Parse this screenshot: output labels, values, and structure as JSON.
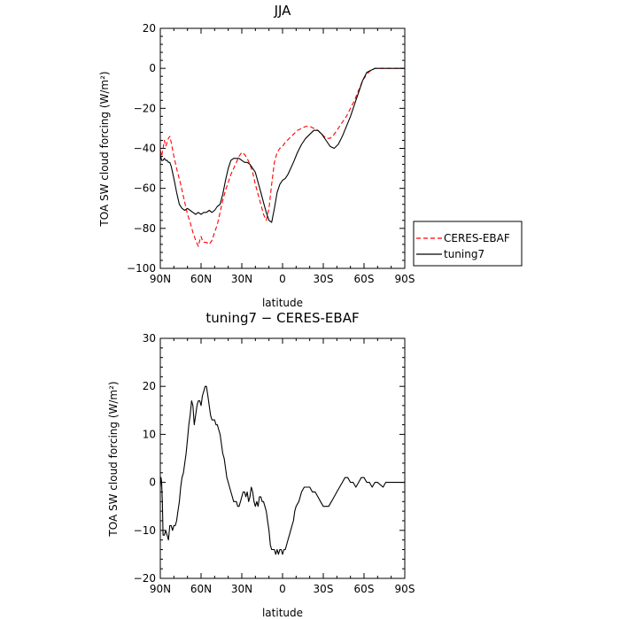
{
  "chart_data": [
    {
      "type": "line",
      "title": "JJA",
      "xlabel": "latitude",
      "ylabel": "TOA SW cloud forcing (W/m²)",
      "xlim": [
        90,
        -90
      ],
      "ylim": [
        -100,
        20
      ],
      "xticks": [
        90,
        60,
        30,
        0,
        -30,
        -60,
        -90
      ],
      "xtick_labels": [
        "90N",
        "60N",
        "30N",
        "0",
        "30S",
        "60S",
        "90S"
      ],
      "yticks": [
        -100,
        -80,
        -60,
        -40,
        -20,
        0,
        20
      ],
      "ytick_labels": [
        "−100",
        "−80",
        "−60",
        "−40",
        "−20",
        "0",
        "20"
      ],
      "legend_position": "outside-right",
      "series": [
        {
          "name": "CERES-EBAF",
          "color": "#ff0000",
          "dash": "dashed",
          "x": [
            90,
            89,
            88,
            87,
            86,
            85,
            84,
            83,
            82,
            80,
            78,
            75,
            72,
            70,
            68,
            66,
            64,
            62,
            61,
            60,
            59,
            58,
            56,
            54,
            52,
            50,
            48,
            46,
            44,
            42,
            40,
            38,
            36,
            34,
            32,
            30,
            28,
            26,
            24,
            22,
            20,
            18,
            16,
            14,
            12,
            10,
            8,
            6,
            4,
            2,
            0,
            -2,
            -5,
            -8,
            -11,
            -14,
            -17,
            -20,
            -23,
            -26,
            -29,
            -32,
            -35,
            -38,
            -41,
            -44,
            -47,
            -50,
            -53,
            -56,
            -59,
            -62,
            -65,
            -68,
            -71,
            -74,
            -77,
            -80,
            -83,
            -86,
            -90
          ],
          "values": [
            -41,
            -44,
            -40,
            -36,
            -39,
            -37,
            -35,
            -34,
            -37,
            -44,
            -50,
            -58,
            -67,
            -73,
            -77,
            -82,
            -86,
            -89,
            -86,
            -84,
            -86,
            -87,
            -87,
            -88,
            -86,
            -82,
            -78,
            -72,
            -66,
            -61,
            -57,
            -53,
            -50,
            -47,
            -44,
            -42,
            -43,
            -45,
            -48,
            -52,
            -58,
            -63,
            -68,
            -73,
            -76,
            -70,
            -58,
            -47,
            -42,
            -40,
            -39,
            -37,
            -35,
            -33,
            -31,
            -30,
            -29,
            -29,
            -30,
            -31,
            -33,
            -35,
            -35,
            -33,
            -30,
            -27,
            -24,
            -20,
            -16,
            -11,
            -6,
            -3,
            -1,
            0,
            0,
            0,
            0,
            0,
            0,
            0,
            0
          ]
        },
        {
          "name": "tuning7",
          "color": "#000000",
          "dash": "solid",
          "x": [
            90,
            89,
            88,
            87,
            86,
            85,
            84,
            83,
            82,
            80,
            78,
            76,
            74,
            72,
            70,
            68,
            66,
            64,
            62,
            60,
            58,
            56,
            54,
            52,
            50,
            48,
            46,
            44,
            42,
            40,
            38,
            36,
            34,
            32,
            30,
            28,
            26,
            24,
            22,
            20,
            18,
            16,
            14,
            12,
            10,
            8,
            6,
            4,
            2,
            0,
            -2,
            -4,
            -6,
            -8,
            -11,
            -14,
            -17,
            -20,
            -23,
            -26,
            -29,
            -32,
            -35,
            -38,
            -41,
            -44,
            -47,
            -50,
            -53,
            -56,
            -59,
            -62,
            -65,
            -68,
            -71,
            -74,
            -77,
            -80,
            -83,
            -86,
            -90
          ],
          "values": [
            -43,
            -46,
            -46,
            -45,
            -46,
            -46,
            -47,
            -47,
            -49,
            -55,
            -62,
            -68,
            -70,
            -71,
            -70,
            -71,
            -72,
            -73,
            -72,
            -73,
            -72,
            -72,
            -71,
            -72,
            -71,
            -69,
            -68,
            -63,
            -56,
            -50,
            -46,
            -45,
            -45,
            -45,
            -46,
            -47,
            -47,
            -48,
            -50,
            -52,
            -57,
            -62,
            -67,
            -72,
            -76,
            -77,
            -70,
            -62,
            -58,
            -56,
            -55,
            -53,
            -50,
            -47,
            -42,
            -38,
            -35,
            -33,
            -31,
            -31,
            -33,
            -36,
            -39,
            -40,
            -38,
            -34,
            -29,
            -24,
            -18,
            -12,
            -6,
            -2,
            -1,
            0,
            0,
            0,
            0,
            0,
            0,
            0,
            0
          ]
        }
      ]
    },
    {
      "type": "line",
      "title": "tuning7 − CERES-EBAF",
      "xlabel": "latitude",
      "ylabel": "TOA SW cloud forcing (W/m²)",
      "xlim": [
        90,
        -90
      ],
      "ylim": [
        -20,
        30
      ],
      "xticks": [
        90,
        60,
        30,
        0,
        -30,
        -60,
        -90
      ],
      "xtick_labels": [
        "90N",
        "60N",
        "30N",
        "0",
        "30S",
        "60S",
        "90S"
      ],
      "yticks": [
        -20,
        -10,
        0,
        10,
        20,
        30
      ],
      "ytick_labels": [
        "−20",
        "−10",
        "0",
        "10",
        "20",
        "30"
      ],
      "series": [
        {
          "name": "",
          "color": "#000000",
          "dash": "solid",
          "x": [
            90,
            89.5,
            89,
            88.5,
            88,
            87,
            86,
            85,
            84,
            83,
            82,
            81,
            80,
            79,
            78,
            77,
            76,
            75,
            74,
            73,
            72,
            71,
            70,
            69,
            68,
            67,
            66,
            65,
            64,
            63,
            62,
            61,
            60,
            59,
            58,
            57,
            56,
            55,
            54,
            53,
            52,
            51,
            50,
            49,
            48,
            47,
            46,
            45,
            44,
            43,
            42,
            41,
            40,
            39,
            38,
            37,
            36,
            35,
            34,
            33,
            32,
            31,
            30,
            29,
            28,
            27,
            26,
            25,
            24,
            23,
            22,
            21,
            20,
            19,
            18,
            17,
            16,
            15,
            14,
            13,
            12,
            11,
            10,
            9,
            8,
            7,
            6,
            5,
            4,
            3,
            2,
            1,
            0,
            -1,
            -2,
            -3,
            -4,
            -5,
            -6,
            -7,
            -8,
            -9,
            -10,
            -12,
            -14,
            -16,
            -18,
            -20,
            -22,
            -24,
            -26,
            -28,
            -30,
            -32,
            -34,
            -36,
            -38,
            -40,
            -42,
            -44,
            -46,
            -48,
            -50,
            -52,
            -54,
            -56,
            -58,
            -60,
            -62,
            -64,
            -66,
            -68,
            -70,
            -72,
            -74,
            -76,
            -78,
            -80,
            -82,
            -84,
            -86,
            -88,
            -90
          ],
          "values": [
            -1,
            1,
            0,
            -4,
            -11,
            -11,
            -10,
            -11,
            -12,
            -9,
            -9,
            -10,
            -9,
            -9,
            -8,
            -6,
            -4,
            -1,
            1,
            2,
            4,
            6,
            9,
            12,
            14,
            17,
            16,
            12,
            14,
            16,
            17,
            17,
            16,
            18,
            19,
            20,
            20,
            18,
            16,
            14,
            13,
            13,
            13,
            12,
            12,
            11,
            10,
            8,
            6,
            5,
            3,
            1,
            0,
            -1,
            -2,
            -3,
            -4,
            -4,
            -4,
            -5,
            -5,
            -4,
            -3,
            -2,
            -2,
            -3,
            -2,
            -4,
            -3,
            -1,
            -2,
            -4,
            -5,
            -4,
            -5,
            -3,
            -3,
            -4,
            -4,
            -5,
            -6,
            -8,
            -10,
            -13,
            -14,
            -14,
            -14,
            -15,
            -14,
            -15,
            -14,
            -14,
            -15,
            -14,
            -14,
            -13,
            -12,
            -11,
            -10,
            -9,
            -8,
            -6,
            -5,
            -4,
            -2,
            -1,
            -1,
            -1,
            -2,
            -2,
            -3,
            -4,
            -5,
            -5,
            -5,
            -4,
            -3,
            -2,
            -1,
            0,
            1,
            1,
            0,
            0,
            -1,
            0,
            1,
            1,
            0,
            0,
            -1,
            0,
            0,
            -0.5,
            -1,
            0,
            0,
            0,
            0,
            0,
            0,
            0,
            0
          ]
        }
      ]
    }
  ]
}
